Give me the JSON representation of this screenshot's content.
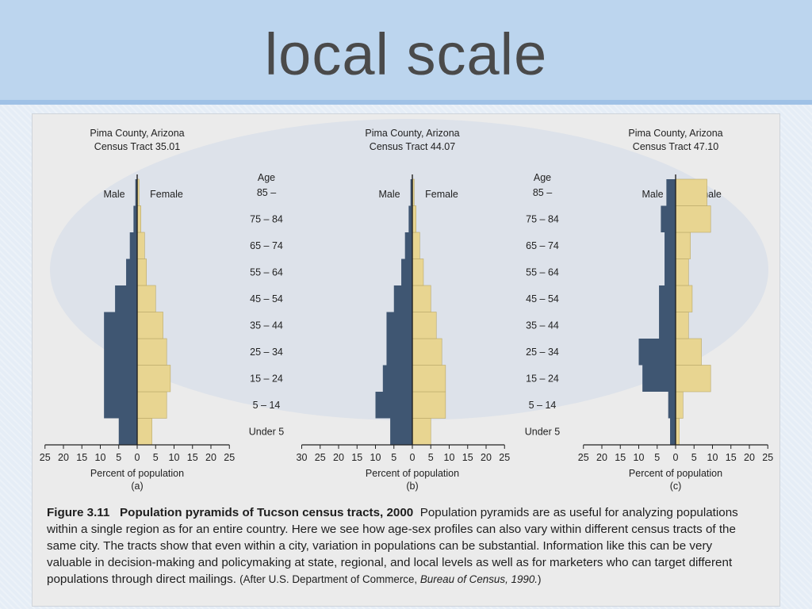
{
  "slide": {
    "title": "local scale"
  },
  "caption": {
    "label": "Figure 3.11",
    "title": "Population pyramids of Tucson census tracts, 2000",
    "lines": [
      "Population pyramids are as useful for analyzing populations",
      "within a single region as for an entire country. Here we see how age-sex profiles can also vary within different census tracts of the",
      "same city. The tracts show that even within a city, variation in populations can be substantial. Information like this can be very",
      "valuable in decision-making and policymaking at state, regional, and local levels as well as for marketers who can target different",
      "populations through direct mailings."
    ],
    "source_prefix": "(After U.S. Department of Commerce, ",
    "source_italic": "Bureau of Census, 1990.",
    "source_suffix": ")"
  },
  "colors": {
    "male": "#3f5672",
    "female": "#e8d591",
    "axis": "#222222"
  },
  "age_header": "Age",
  "male_label": "Male",
  "female_label": "Female",
  "chart_data": [
    {
      "type": "bar",
      "subtype": "population-pyramid",
      "title_lines": [
        "Pima County, Arizona",
        "Census Tract 35.01"
      ],
      "xlabel": "Percent of population",
      "panel_label": "(a)",
      "categories": [
        "Under 5",
        "5 – 14",
        "15 – 24",
        "25 – 34",
        "35 – 44",
        "45 – 54",
        "55 – 64",
        "65 – 74",
        "75 – 84",
        "85 –"
      ],
      "series": [
        {
          "name": "Male",
          "values": [
            5,
            9,
            9,
            9,
            9,
            6,
            3,
            2,
            1,
            0.5
          ]
        },
        {
          "name": "Female",
          "values": [
            4,
            8,
            9,
            8,
            7,
            5,
            2.5,
            2,
            1,
            0.5
          ]
        }
      ],
      "ticks_left": [
        25,
        20,
        15,
        10,
        5,
        0
      ],
      "ticks_right": [
        5,
        10,
        15,
        20,
        25
      ],
      "xlim_left": 25,
      "xlim_right": 25
    },
    {
      "type": "bar",
      "subtype": "population-pyramid",
      "title_lines": [
        "Pima County, Arizona",
        "Census Tract 44.07"
      ],
      "xlabel": "Percent of population",
      "panel_label": "(b)",
      "categories": [
        "Under 5",
        "5 – 14",
        "15 – 24",
        "25 – 34",
        "35 – 44",
        "45 – 54",
        "55 – 64",
        "65 – 74",
        "75 – 84",
        "85 –"
      ],
      "series": [
        {
          "name": "Male",
          "values": [
            6,
            10,
            8,
            7,
            7,
            5,
            3,
            2,
            1,
            0.5
          ]
        },
        {
          "name": "Female",
          "values": [
            5,
            9,
            9,
            8,
            6.5,
            5,
            3,
            2,
            1,
            0.5
          ]
        }
      ],
      "ticks_left": [
        30,
        25,
        20,
        15,
        10,
        5,
        0
      ],
      "ticks_right": [
        5,
        10,
        15,
        20,
        25
      ],
      "xlim_left": 30,
      "xlim_right": 25
    },
    {
      "type": "bar",
      "subtype": "population-pyramid",
      "title_lines": [
        "Pima County, Arizona",
        "Census Tract 47.10"
      ],
      "xlabel": "Percent of population",
      "panel_label": "(c)",
      "categories": [
        "Under 5",
        "5 – 14",
        "15 – 24",
        "25 – 34",
        "35 – 44",
        "45 – 54",
        "55 – 64",
        "65 – 74",
        "75 – 84",
        "85 –"
      ],
      "series": [
        {
          "name": "Male",
          "values": [
            1.5,
            2,
            9,
            10,
            4.5,
            4.5,
            3,
            3,
            4,
            2.5
          ]
        },
        {
          "name": "Female",
          "values": [
            1,
            2,
            9.5,
            7,
            3.5,
            4.5,
            3.5,
            4,
            9.5,
            8.5
          ]
        }
      ],
      "ticks_left": [
        25,
        20,
        15,
        10,
        5,
        0
      ],
      "ticks_right": [
        5,
        10,
        15,
        20,
        25
      ],
      "xlim_left": 25,
      "xlim_right": 25
    }
  ]
}
